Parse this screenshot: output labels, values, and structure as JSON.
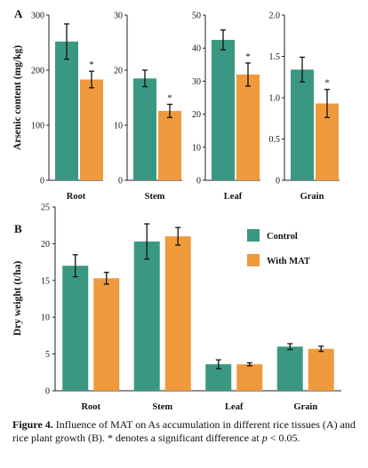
{
  "colors": {
    "control": "#3a9882",
    "mat": "#ef9a3d"
  },
  "legend": [
    "Control",
    "With MAT"
  ],
  "panels": {
    "a_label": "A",
    "b_label": "B"
  },
  "caption": {
    "label": "Figure 4.",
    "text_1": " Influence of MAT on As accumulation in different rice tissues (A) and rice plant growth (B). * denotes a significant difference at ",
    "p_symbol": "p",
    "text_2": " < 0.05."
  },
  "chart_data": [
    {
      "panel": "A",
      "type": "bar",
      "ylabel": "Arsenic content (mg/kg)",
      "facets": [
        {
          "category": "Root",
          "ylim": [
            0,
            300
          ],
          "ticks": [
            "0",
            "100",
            "200",
            "300"
          ],
          "series": [
            {
              "name": "Control",
              "value": 252,
              "err": 32
            },
            {
              "name": "With MAT",
              "value": 183,
              "err": 15
            }
          ],
          "sig": "*"
        },
        {
          "category": "Stem",
          "ylim": [
            0,
            30
          ],
          "ticks": [
            "0",
            "10",
            "20",
            "30"
          ],
          "series": [
            {
              "name": "Control",
              "value": 18.5,
              "err": 1.5
            },
            {
              "name": "With MAT",
              "value": 12.6,
              "err": 1.2
            }
          ],
          "sig": "*"
        },
        {
          "category": "Leaf",
          "ylim": [
            0,
            50
          ],
          "ticks": [
            "0",
            "10",
            "20",
            "30",
            "40",
            "50"
          ],
          "series": [
            {
              "name": "Control",
              "value": 42.5,
              "err": 3.0
            },
            {
              "name": "With MAT",
              "value": 32.0,
              "err": 3.5
            }
          ],
          "sig": "*"
        },
        {
          "category": "Grain",
          "ylim": [
            0,
            2.0
          ],
          "ticks": [
            "0",
            "0.5",
            "1.0",
            "1.5",
            "2.0"
          ],
          "series": [
            {
              "name": "Control",
              "value": 1.34,
              "err": 0.15
            },
            {
              "name": "With MAT",
              "value": 0.93,
              "err": 0.17
            }
          ],
          "sig": "*"
        }
      ]
    },
    {
      "panel": "B",
      "type": "bar",
      "ylabel": "Dry weight (t/ha)",
      "ylim": [
        0,
        25
      ],
      "ticks": [
        "0",
        "5",
        "10",
        "15",
        "20",
        "25"
      ],
      "categories": [
        "Root",
        "Stem",
        "Leaf",
        "Grain"
      ],
      "series": [
        {
          "name": "Control",
          "values": [
            17.0,
            20.3,
            3.6,
            6.0
          ],
          "errors": [
            1.5,
            2.4,
            0.6,
            0.4
          ]
        },
        {
          "name": "With MAT",
          "values": [
            15.3,
            21.0,
            3.6,
            5.7
          ],
          "errors": [
            0.8,
            1.2,
            0.2,
            0.35
          ]
        }
      ]
    }
  ]
}
